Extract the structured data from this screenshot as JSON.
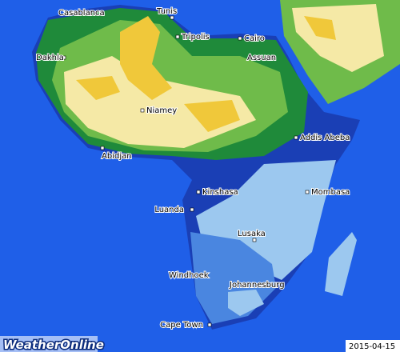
{
  "cities": [
    {
      "label": "Casablanca"
    },
    {
      "label": "Tunis"
    },
    {
      "label": "Tripolis"
    },
    {
      "label": "Cairo"
    },
    {
      "label": "Dakhla"
    },
    {
      "label": "Assuan"
    },
    {
      "label": "Niamey"
    },
    {
      "label": "Addis Abeba"
    },
    {
      "label": "Abidjan"
    },
    {
      "label": "Kinshasa"
    },
    {
      "label": "Mombasa"
    },
    {
      "label": "Luanda"
    },
    {
      "label": "Lusaka"
    },
    {
      "label": "Windhoek"
    },
    {
      "label": "Johannesburg"
    },
    {
      "label": "Cape Town"
    }
  ],
  "logo": "WeatherOnline",
  "date": "2015-04-15"
}
